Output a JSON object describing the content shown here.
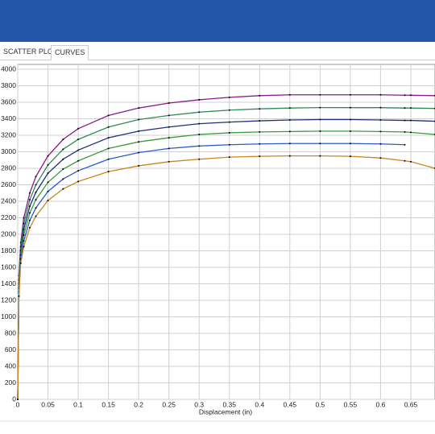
{
  "tabs": [
    "SCATTER PLOT",
    "CURVES"
  ],
  "chart_data": {
    "type": "line",
    "x_label": "Displacement (in)",
    "x": [
      0,
      0.002,
      0.005,
      0.01,
      0.02,
      0.03,
      0.05,
      0.075,
      0.1,
      0.15,
      0.2,
      0.25,
      0.3,
      0.35,
      0.4,
      0.45,
      0.5,
      0.55,
      0.6,
      0.64,
      0.65,
      0.69
    ],
    "series": [
      {
        "color": "#8b1a8b",
        "values": [
          0,
          1500,
          1900,
          2200,
          2500,
          2700,
          2950,
          3150,
          3280,
          3440,
          3530,
          3590,
          3630,
          3660,
          3680,
          3690,
          3690,
          3690,
          3690,
          3685,
          3685,
          3680
        ]
      },
      {
        "color": "#2e8b57",
        "values": [
          0,
          1450,
          1850,
          2130,
          2420,
          2600,
          2840,
          3030,
          3150,
          3300,
          3390,
          3440,
          3480,
          3505,
          3520,
          3530,
          3535,
          3535,
          3535,
          3530,
          3530,
          3525
        ]
      },
      {
        "color": "#1f2f7a",
        "values": [
          0,
          1400,
          1800,
          2060,
          2340,
          2510,
          2740,
          2910,
          3020,
          3170,
          3250,
          3300,
          3340,
          3360,
          3375,
          3385,
          3390,
          3390,
          3385,
          3380,
          3380,
          3370
        ]
      },
      {
        "color": "#3c9a3c",
        "values": [
          0,
          1350,
          1750,
          1990,
          2260,
          2420,
          2630,
          2790,
          2890,
          3040,
          3120,
          3170,
          3210,
          3230,
          3240,
          3245,
          3250,
          3250,
          3245,
          3240,
          3235,
          3210
        ]
      },
      {
        "color": "#2a5bd0",
        "values": [
          0,
          1300,
          1700,
          1920,
          2170,
          2320,
          2520,
          2670,
          2770,
          2910,
          2990,
          3040,
          3070,
          3085,
          3095,
          3100,
          3100,
          3100,
          3095,
          3085,
          null,
          null
        ]
      },
      {
        "color": "#c8861e",
        "values": [
          0,
          1250,
          1650,
          1850,
          2080,
          2220,
          2410,
          2550,
          2640,
          2760,
          2830,
          2880,
          2910,
          2935,
          2945,
          2950,
          2950,
          2945,
          2925,
          2890,
          2880,
          2800
        ]
      }
    ],
    "xlim": [
      0,
      0.69
    ],
    "ylim": [
      0,
      4000
    ],
    "xticks": [
      0,
      0.05,
      0.1,
      0.15,
      0.2,
      0.25,
      0.3,
      0.35,
      0.4,
      0.45,
      0.5,
      0.55,
      0.6,
      0.65
    ],
    "yticks": [
      0,
      200,
      400,
      600,
      800,
      1000,
      1200,
      1400,
      1600,
      1800,
      2000,
      2200,
      2400,
      2600,
      2800,
      3000,
      3200,
      3400,
      3600,
      3800,
      4000
    ],
    "grid": true,
    "marker_color": "#000000"
  }
}
